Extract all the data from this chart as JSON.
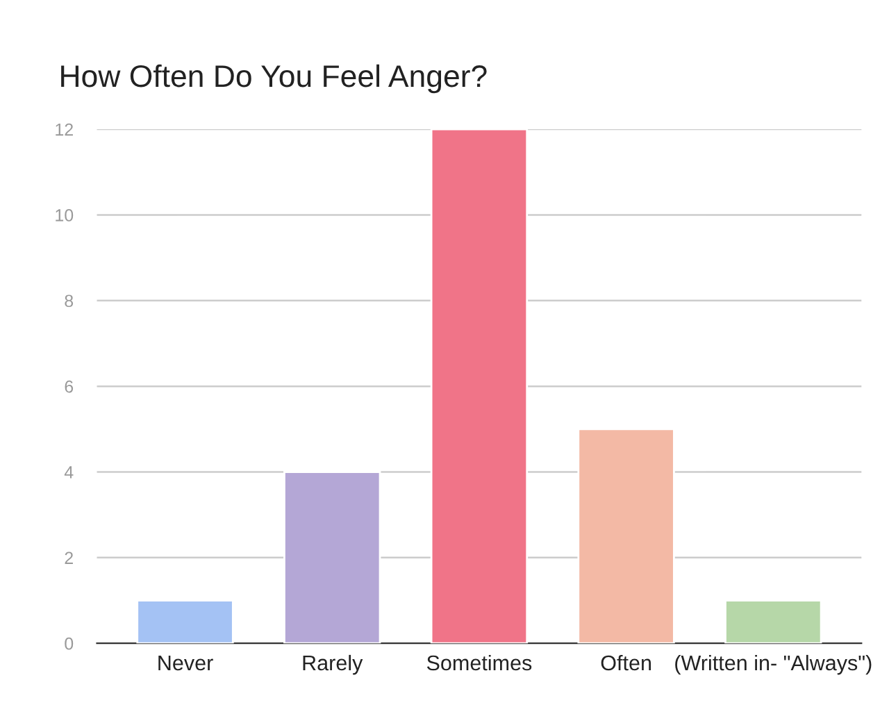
{
  "chart_data": {
    "type": "bar",
    "title": "How Often Do You Feel Anger?",
    "categories": [
      "Never",
      "Rarely",
      "Sometimes",
      "Often",
      "(Written in- \"Always\")"
    ],
    "values": [
      1,
      4,
      12,
      5,
      1
    ],
    "colors": [
      "#a4c2f4",
      "#b4a7d6",
      "#f07488",
      "#f3b9a5",
      "#b6d7a8"
    ],
    "ylim": [
      0,
      12
    ],
    "yticks": [
      0,
      2,
      4,
      6,
      8,
      10,
      12
    ],
    "grid": "y",
    "legend": false
  }
}
